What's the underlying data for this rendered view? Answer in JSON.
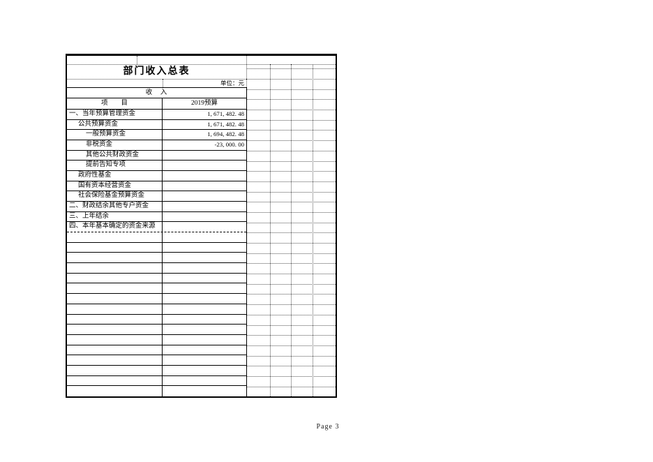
{
  "page": {
    "footer": "Page 3"
  },
  "table": {
    "title": "部门收入总表",
    "unit_label": "单位：元",
    "section_header": "收　入",
    "columns": {
      "item": "项　　目",
      "budget": "2019预算"
    },
    "rows": [
      {
        "label": "一、当年预算管理资金",
        "indent": 0,
        "value": "1, 671, 482. 48"
      },
      {
        "label": "公共预算资金",
        "indent": 1,
        "value": "1, 671, 482. 48"
      },
      {
        "label": "一般预算资金",
        "indent": 2,
        "value": "1, 694, 482. 48"
      },
      {
        "label": "非税资金",
        "indent": 2,
        "value": "-23, 000. 00"
      },
      {
        "label": "其他公共财政资金",
        "indent": 2,
        "value": ""
      },
      {
        "label": "提前告知专项",
        "indent": 2,
        "value": ""
      },
      {
        "label": "政府性基金",
        "indent": 1,
        "value": ""
      },
      {
        "label": "国有资本经营资金",
        "indent": 1,
        "value": ""
      },
      {
        "label": "社会保险基金预算资金",
        "indent": 1,
        "value": ""
      },
      {
        "label": "二、财政结余其他专户资金",
        "indent": 0,
        "value": ""
      },
      {
        "label": "三、上年结余",
        "indent": 0,
        "value": ""
      },
      {
        "label": "四、本年基本确定的资金来源",
        "indent": 0,
        "value": ""
      }
    ],
    "empty_row_count": 16
  }
}
